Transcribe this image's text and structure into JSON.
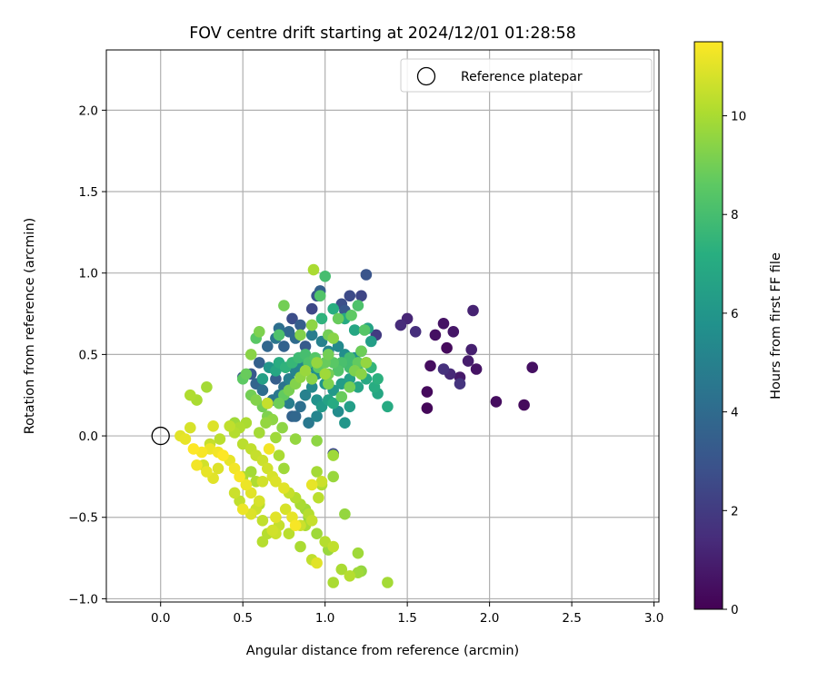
{
  "chart_data": {
    "type": "scatter",
    "title": "FOV centre drift starting at 2024/12/01 01:28:58",
    "xlabel": "Angular distance from reference (arcmin)",
    "ylabel": "Rotation from reference (arcmin)",
    "xlim": [
      -0.33,
      3.03
    ],
    "ylim": [
      -1.02,
      2.37
    ],
    "x_ticks": [
      0.0,
      0.5,
      1.0,
      1.5,
      2.0,
      2.5,
      3.0
    ],
    "x_tick_labels": [
      "0.0",
      "0.5",
      "1.0",
      "1.5",
      "2.0",
      "2.5",
      "3.0"
    ],
    "y_ticks": [
      -1.0,
      -0.5,
      0.0,
      0.5,
      1.0,
      1.5,
      2.0
    ],
    "y_tick_labels": [
      "−1.0",
      "−0.5",
      "0.0",
      "0.5",
      "1.0",
      "1.5",
      "2.0"
    ],
    "grid": true,
    "legend": {
      "position": "top-right",
      "entries": [
        "Reference platepar"
      ]
    },
    "reference": {
      "x": 0.0,
      "y": 0.0,
      "name": "Reference platepar"
    },
    "colorbar": {
      "label": "Hours from first FF file",
      "range": [
        0,
        11.5
      ],
      "ticks": [
        0,
        2,
        4,
        6,
        8,
        10
      ],
      "tick_labels": [
        "0",
        "2",
        "4",
        "6",
        "8",
        "10"
      ],
      "colormap": "viridis"
    },
    "points": [
      [
        1.62,
        0.17,
        0.2
      ],
      [
        1.62,
        0.27,
        0.3
      ],
      [
        1.64,
        0.43,
        0.4
      ],
      [
        1.67,
        0.62,
        0.5
      ],
      [
        1.72,
        0.69,
        0.6
      ],
      [
        1.78,
        0.64,
        0.7
      ],
      [
        1.74,
        0.54,
        0.3
      ],
      [
        1.82,
        0.36,
        0.8
      ],
      [
        1.87,
        0.46,
        0.9
      ],
      [
        1.89,
        0.53,
        1.0
      ],
      [
        1.9,
        0.77,
        1.1
      ],
      [
        1.92,
        0.41,
        0.6
      ],
      [
        2.04,
        0.21,
        0.4
      ],
      [
        2.21,
        0.19,
        0.3
      ],
      [
        2.26,
        0.42,
        0.5
      ],
      [
        1.5,
        0.72,
        1.2
      ],
      [
        1.46,
        0.68,
        1.4
      ],
      [
        1.55,
        0.64,
        1.5
      ],
      [
        1.76,
        0.38,
        1.3
      ],
      [
        1.72,
        0.41,
        1.6
      ],
      [
        1.82,
        0.32,
        1.7
      ],
      [
        1.31,
        0.62,
        2.0
      ],
      [
        1.25,
        0.99,
        3.0
      ],
      [
        1.22,
        0.86,
        2.4
      ],
      [
        1.15,
        0.86,
        2.6
      ],
      [
        1.1,
        0.81,
        2.8
      ],
      [
        1.12,
        0.77,
        3.2
      ],
      [
        0.97,
        0.89,
        3.5
      ],
      [
        0.95,
        0.86,
        3.0
      ],
      [
        0.92,
        0.78,
        2.5
      ],
      [
        0.8,
        0.72,
        2.7
      ],
      [
        0.85,
        0.68,
        3.4
      ],
      [
        0.78,
        0.64,
        3.9
      ],
      [
        0.72,
        0.66,
        4.2
      ],
      [
        0.7,
        0.6,
        4.5
      ],
      [
        0.65,
        0.55,
        3.8
      ],
      [
        0.75,
        0.55,
        3.6
      ],
      [
        0.82,
        0.6,
        4.0
      ],
      [
        0.88,
        0.55,
        3.3
      ],
      [
        0.92,
        0.62,
        4.8
      ],
      [
        0.98,
        0.58,
        5.0
      ],
      [
        1.02,
        0.52,
        5.2
      ],
      [
        1.08,
        0.55,
        5.4
      ],
      [
        1.12,
        0.5,
        5.6
      ],
      [
        1.18,
        0.48,
        5.8
      ],
      [
        1.22,
        0.52,
        6.0
      ],
      [
        1.25,
        0.45,
        6.2
      ],
      [
        1.28,
        0.58,
        6.4
      ],
      [
        1.26,
        0.66,
        6.6
      ],
      [
        1.18,
        0.65,
        6.8
      ],
      [
        1.12,
        0.72,
        7.0
      ],
      [
        1.05,
        0.78,
        7.2
      ],
      [
        0.98,
        0.72,
        7.4
      ],
      [
        0.92,
        0.68,
        7.6
      ],
      [
        0.6,
        0.45,
        3.5
      ],
      [
        0.55,
        0.38,
        3.2
      ],
      [
        0.5,
        0.36,
        3.0
      ],
      [
        0.58,
        0.32,
        3.7
      ],
      [
        0.62,
        0.28,
        4.1
      ],
      [
        0.68,
        0.22,
        4.4
      ],
      [
        0.72,
        0.25,
        4.6
      ],
      [
        0.75,
        0.3,
        4.3
      ],
      [
        0.78,
        0.35,
        4.9
      ],
      [
        0.82,
        0.4,
        5.1
      ],
      [
        0.85,
        0.45,
        5.3
      ],
      [
        0.9,
        0.42,
        5.5
      ],
      [
        0.95,
        0.38,
        5.7
      ],
      [
        1.0,
        0.32,
        5.9
      ],
      [
        1.05,
        0.28,
        6.1
      ],
      [
        1.1,
        0.32,
        6.3
      ],
      [
        1.15,
        0.35,
        6.5
      ],
      [
        1.2,
        0.3,
        6.7
      ],
      [
        1.25,
        0.35,
        6.9
      ],
      [
        1.3,
        0.3,
        7.1
      ],
      [
        1.32,
        0.26,
        6.8
      ],
      [
        1.38,
        0.18,
        7.0
      ],
      [
        1.32,
        0.35,
        7.3
      ],
      [
        1.28,
        0.42,
        7.5
      ],
      [
        1.2,
        0.4,
        7.7
      ],
      [
        1.15,
        0.42,
        7.9
      ],
      [
        0.65,
        0.2,
        3.1
      ],
      [
        0.7,
        0.35,
        3.4
      ],
      [
        0.78,
        0.2,
        4.8
      ],
      [
        0.8,
        0.12,
        3.6
      ],
      [
        0.85,
        0.18,
        4.2
      ],
      [
        0.88,
        0.25,
        5.0
      ],
      [
        0.92,
        0.3,
        5.4
      ],
      [
        0.95,
        0.22,
        5.8
      ],
      [
        0.98,
        0.18,
        6.2
      ],
      [
        1.02,
        0.22,
        6.6
      ],
      [
        1.05,
        0.2,
        7.0
      ],
      [
        1.08,
        0.15,
        5.5
      ],
      [
        1.12,
        0.08,
        6.0
      ],
      [
        1.15,
        0.18,
        6.4
      ],
      [
        0.95,
        0.12,
        5.2
      ],
      [
        0.9,
        0.08,
        4.6
      ],
      [
        1.05,
        -0.11,
        2.6
      ],
      [
        0.82,
        0.12,
        3.8
      ],
      [
        0.62,
        0.35,
        6.5
      ],
      [
        0.66,
        0.42,
        6.0
      ],
      [
        0.7,
        0.4,
        6.8
      ],
      [
        0.72,
        0.45,
        7.1
      ],
      [
        0.76,
        0.42,
        7.4
      ],
      [
        0.8,
        0.45,
        7.6
      ],
      [
        0.84,
        0.48,
        7.8
      ],
      [
        0.88,
        0.5,
        8.0
      ],
      [
        0.9,
        0.45,
        8.2
      ],
      [
        0.94,
        0.48,
        8.4
      ],
      [
        0.96,
        0.42,
        8.6
      ],
      [
        1.0,
        0.45,
        8.8
      ],
      [
        1.02,
        0.38,
        9.0
      ],
      [
        1.05,
        0.45,
        8.5
      ],
      [
        1.08,
        0.4,
        8.3
      ],
      [
        1.1,
        0.45,
        8.1
      ],
      [
        1.15,
        0.48,
        7.9
      ],
      [
        1.2,
        0.45,
        8.7
      ],
      [
        1.22,
        0.52,
        8.9
      ],
      [
        1.24,
        0.65,
        8.4
      ],
      [
        1.2,
        0.8,
        8.2
      ],
      [
        1.16,
        0.74,
        8.6
      ],
      [
        1.08,
        0.72,
        8.8
      ],
      [
        1.02,
        0.62,
        9.0
      ],
      [
        1.0,
        0.98,
        8.0
      ],
      [
        0.97,
        0.86,
        8.3
      ],
      [
        0.75,
        0.8,
        9.0
      ],
      [
        0.72,
        0.62,
        8.2
      ],
      [
        0.58,
        0.6,
        8.5
      ],
      [
        0.6,
        0.64,
        9.2
      ],
      [
        0.55,
        0.5,
        9.4
      ],
      [
        0.52,
        0.38,
        8.8
      ],
      [
        0.5,
        0.35,
        8.6
      ],
      [
        0.55,
        0.25,
        9.0
      ],
      [
        0.58,
        0.22,
        9.3
      ],
      [
        0.62,
        0.18,
        9.0
      ],
      [
        0.65,
        0.12,
        9.2
      ],
      [
        0.68,
        0.1,
        9.5
      ],
      [
        0.72,
        0.2,
        8.9
      ],
      [
        0.75,
        0.25,
        8.7
      ],
      [
        0.78,
        0.28,
        9.1
      ],
      [
        0.82,
        0.32,
        9.3
      ],
      [
        0.85,
        0.36,
        9.5
      ],
      [
        0.88,
        0.4,
        9.7
      ],
      [
        0.92,
        0.35,
        9.4
      ],
      [
        0.95,
        0.45,
        9.6
      ],
      [
        1.0,
        0.38,
        9.8
      ],
      [
        1.02,
        0.32,
        9.2
      ],
      [
        1.1,
        0.24,
        8.8
      ],
      [
        1.15,
        0.3,
        9.0
      ],
      [
        1.18,
        0.4,
        9.2
      ],
      [
        1.22,
        0.38,
        9.4
      ],
      [
        1.25,
        0.45,
        9.6
      ],
      [
        1.05,
        0.6,
        9.4
      ],
      [
        1.02,
        0.5,
        9.0
      ],
      [
        0.93,
        1.02,
        10.0
      ],
      [
        0.92,
        0.68,
        9.5
      ],
      [
        0.85,
        0.62,
        9.3
      ],
      [
        0.7,
        -0.01,
        9.8
      ],
      [
        0.74,
        0.05,
        9.5
      ],
      [
        0.64,
        0.08,
        9.6
      ],
      [
        0.6,
        0.02,
        9.9
      ],
      [
        0.52,
        0.08,
        10.0
      ],
      [
        0.48,
        0.05,
        10.1
      ],
      [
        0.45,
        0.02,
        10.2
      ],
      [
        0.5,
        -0.05,
        10.3
      ],
      [
        0.55,
        -0.08,
        10.4
      ],
      [
        0.58,
        -0.12,
        10.5
      ],
      [
        0.62,
        -0.15,
        10.6
      ],
      [
        0.65,
        -0.2,
        10.7
      ],
      [
        0.68,
        -0.25,
        10.8
      ],
      [
        0.7,
        -0.28,
        10.9
      ],
      [
        0.75,
        -0.32,
        11.0
      ],
      [
        0.78,
        -0.35,
        10.5
      ],
      [
        0.82,
        -0.38,
        10.2
      ],
      [
        0.85,
        -0.42,
        10.0
      ],
      [
        0.88,
        -0.45,
        9.8
      ],
      [
        0.9,
        -0.5,
        9.6
      ],
      [
        0.82,
        -0.02,
        9.6
      ],
      [
        0.95,
        -0.03,
        9.5
      ],
      [
        1.05,
        -0.25,
        9.7
      ],
      [
        0.95,
        -0.22,
        9.9
      ],
      [
        0.98,
        -0.3,
        10.1
      ],
      [
        0.96,
        -0.38,
        10.3
      ],
      [
        0.92,
        -0.52,
        10.5
      ],
      [
        0.95,
        -0.6,
        9.8
      ],
      [
        0.88,
        -0.55,
        10.0
      ],
      [
        1.0,
        -0.65,
        10.2
      ],
      [
        1.05,
        -0.68,
        10.4
      ],
      [
        1.12,
        -0.48,
        9.6
      ],
      [
        1.2,
        -0.72,
        9.8
      ],
      [
        1.1,
        -0.82,
        10.0
      ],
      [
        1.15,
        -0.86,
        10.2
      ],
      [
        1.2,
        -0.84,
        9.8
      ],
      [
        1.22,
        -0.83,
        9.6
      ],
      [
        1.38,
        -0.9,
        9.9
      ],
      [
        1.05,
        -0.9,
        10.0
      ],
      [
        1.02,
        -0.7,
        9.7
      ],
      [
        0.92,
        -0.76,
        10.4
      ],
      [
        0.95,
        -0.78,
        11.0
      ],
      [
        0.85,
        -0.68,
        10.0
      ],
      [
        0.78,
        -0.6,
        10.3
      ],
      [
        0.72,
        -0.55,
        10.5
      ],
      [
        0.68,
        -0.58,
        10.7
      ],
      [
        0.65,
        -0.6,
        10.2
      ],
      [
        0.62,
        -0.52,
        10.4
      ],
      [
        0.58,
        -0.45,
        10.6
      ],
      [
        0.6,
        -0.4,
        10.8
      ],
      [
        0.55,
        -0.35,
        11.0
      ],
      [
        0.52,
        -0.3,
        11.2
      ],
      [
        0.48,
        -0.25,
        11.4
      ],
      [
        0.45,
        -0.2,
        11.3
      ],
      [
        0.42,
        -0.15,
        11.1
      ],
      [
        0.38,
        -0.12,
        11.5
      ],
      [
        0.35,
        -0.1,
        11.3
      ],
      [
        0.3,
        -0.08,
        11.2
      ],
      [
        0.25,
        -0.1,
        11.4
      ],
      [
        0.2,
        -0.08,
        11.5
      ],
      [
        0.15,
        -0.02,
        11.1
      ],
      [
        0.18,
        0.05,
        10.8
      ],
      [
        0.12,
        0.0,
        11.0
      ],
      [
        0.22,
        -0.18,
        11.3
      ],
      [
        0.28,
        -0.22,
        11.1
      ],
      [
        0.32,
        -0.26,
        11.0
      ],
      [
        0.35,
        -0.2,
        10.9
      ],
      [
        0.26,
        -0.18,
        10.7
      ],
      [
        0.3,
        -0.05,
        10.5
      ],
      [
        0.32,
        0.06,
        10.9
      ],
      [
        0.36,
        -0.02,
        10.3
      ],
      [
        0.22,
        0.22,
        10.0
      ],
      [
        0.18,
        0.25,
        10.1
      ],
      [
        0.28,
        0.3,
        9.9
      ],
      [
        0.48,
        -0.4,
        10.4
      ],
      [
        0.5,
        -0.45,
        11.2
      ],
      [
        0.55,
        -0.48,
        10.9
      ],
      [
        0.45,
        -0.35,
        10.6
      ],
      [
        0.5,
        -0.25,
        10.0
      ],
      [
        0.55,
        -0.22,
        9.9
      ],
      [
        0.58,
        -0.28,
        10.1
      ],
      [
        0.62,
        -0.28,
        10.7
      ],
      [
        0.66,
        -0.08,
        11.3
      ],
      [
        0.72,
        -0.12,
        10.0
      ],
      [
        0.75,
        -0.2,
        9.8
      ],
      [
        0.76,
        -0.45,
        10.8
      ],
      [
        0.8,
        -0.5,
        11.1
      ],
      [
        0.85,
        -0.55,
        10.6
      ],
      [
        0.9,
        -0.48,
        10.2
      ],
      [
        0.82,
        -0.55,
        11.4
      ],
      [
        0.7,
        -0.5,
        11.0
      ],
      [
        0.62,
        -0.65,
        10.2
      ],
      [
        0.7,
        -0.6,
        10.6
      ],
      [
        0.6,
        -0.42,
        10.3
      ],
      [
        0.42,
        0.06,
        10.4
      ],
      [
        0.45,
        0.08,
        9.8
      ],
      [
        0.65,
        0.2,
        10.5
      ],
      [
        1.05,
        -0.12,
        9.8
      ],
      [
        0.98,
        -0.28,
        10.6
      ],
      [
        0.92,
        -0.3,
        11.1
      ]
    ]
  }
}
